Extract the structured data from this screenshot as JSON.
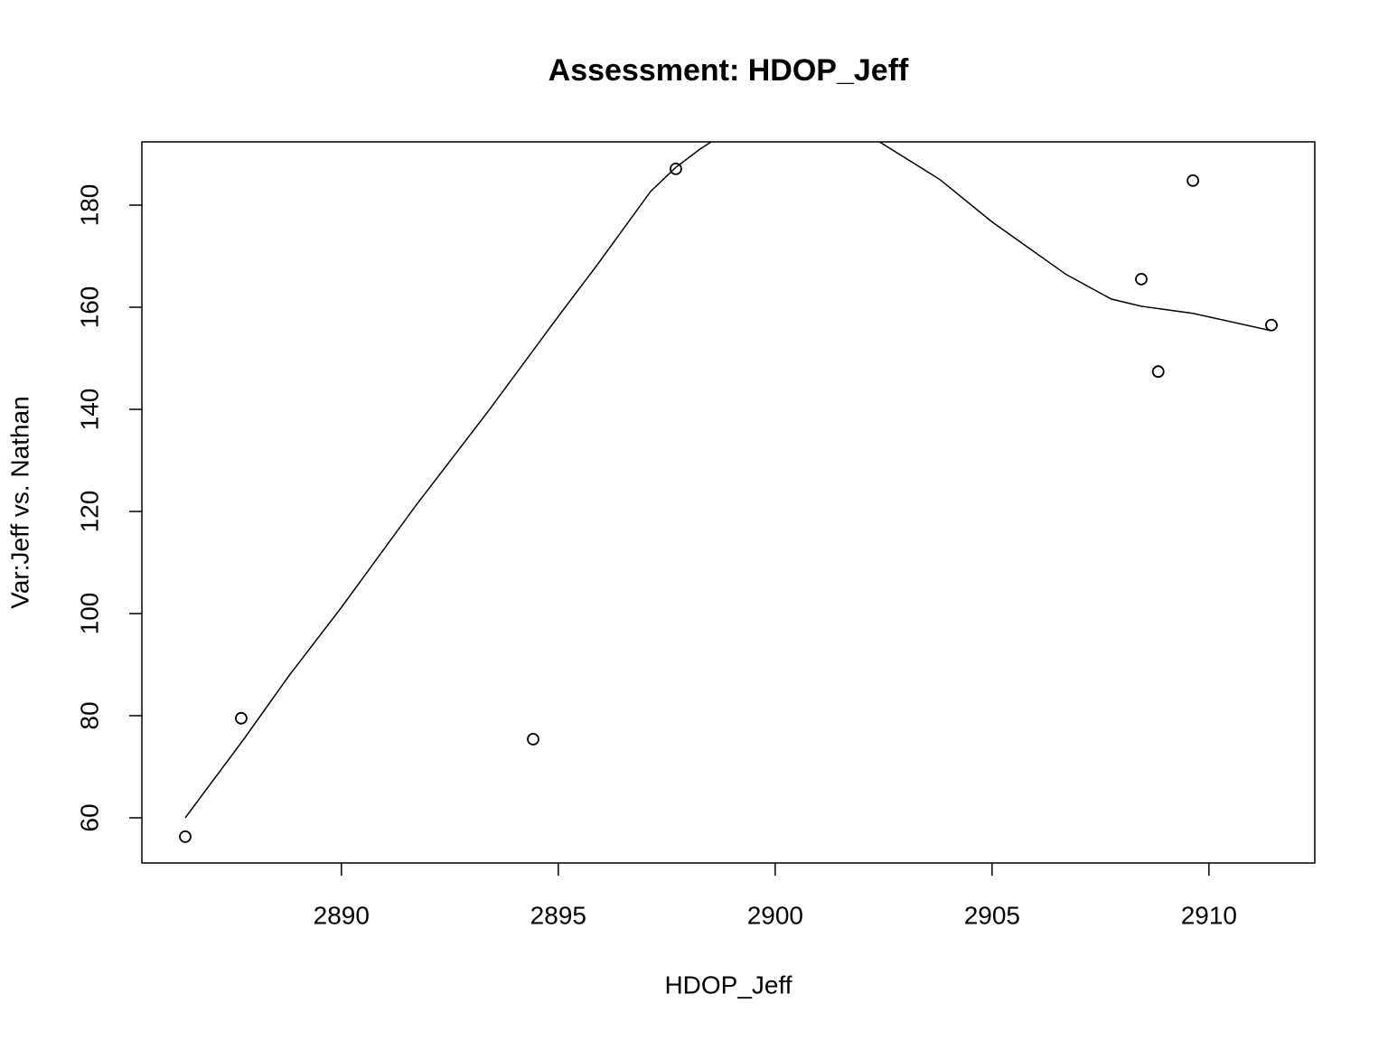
{
  "chart_data": {
    "type": "scatter",
    "title": "Assessment: HDOP_Jeff",
    "x_label": "HDOP_Jeff",
    "y_label": "Var:Jeff vs. Nathan",
    "xlim": [
      2885.4,
      2912.44
    ],
    "ylim": [
      51.15,
      192.39
    ],
    "xticks": [
      2890,
      2895,
      2900,
      2905,
      2910
    ],
    "yticks": [
      60,
      80,
      100,
      120,
      140,
      160,
      180
    ],
    "color": "#000000",
    "series": [
      {
        "type": "points",
        "x": [
          2886.4,
          2887.69,
          2894.42,
          2897.71,
          2908.44,
          2908.83,
          2909.63,
          2911.44
        ],
        "values": [
          56.3,
          79.5,
          75.4,
          187.1,
          165.5,
          147.4,
          184.8,
          156.5
        ]
      },
      {
        "type": "line",
        "x": [
          2886.4,
          2887.75,
          2888.79,
          2890,
          2891.71,
          2893.38,
          2895,
          2895.88,
          2897.13,
          2897.71,
          2898.27,
          2898.69,
          2899.5,
          2900.5,
          2901.5,
          2902.4,
          2903.8,
          2905,
          2906.71,
          2907.75,
          2908.44,
          2909.63,
          2911.44
        ],
        "values": [
          60,
          75.4,
          87.8,
          101.2,
          121.1,
          139.6,
          158.2,
          168.1,
          182.7,
          187.4,
          191,
          193.3,
          198,
          200,
          198,
          192.4,
          185,
          176.7,
          166.4,
          161.6,
          160.2,
          158.8,
          155.4
        ]
      }
    ]
  }
}
